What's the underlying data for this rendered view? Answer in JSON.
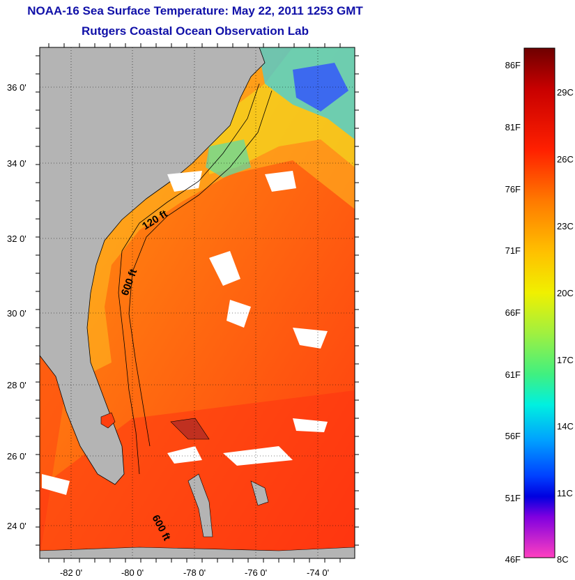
{
  "header": {
    "title": "NOAA-16 Sea Surface Temperature:  May 22, 2011 1253 GMT",
    "subtitle": "Rutgers Coastal Ocean Observation Lab"
  },
  "map": {
    "lat_labels": [
      "36 0'",
      "34 0'",
      "32 0'",
      "30 0'",
      "28 0'",
      "26 0'",
      "24 0'"
    ],
    "lon_labels": [
      "-82 0'",
      "-80 0'",
      "-78 0'",
      "-76 0'",
      "-74 0'"
    ],
    "contour_labels": [
      "120 ft",
      "600 ft",
      "600 ft"
    ]
  },
  "colorbar": {
    "fahrenheit": [
      "86F",
      "81F",
      "76F",
      "71F",
      "66F",
      "61F",
      "56F",
      "51F",
      "46F"
    ],
    "celsius": [
      "29C",
      "26C",
      "23C",
      "20C",
      "17C",
      "14C",
      "11C",
      "8C"
    ]
  },
  "colors": {
    "land": "#b4b4b4",
    "title": "#1010a8",
    "warm_sea": "#ff5a10",
    "cool_sea": "#ffb800"
  }
}
